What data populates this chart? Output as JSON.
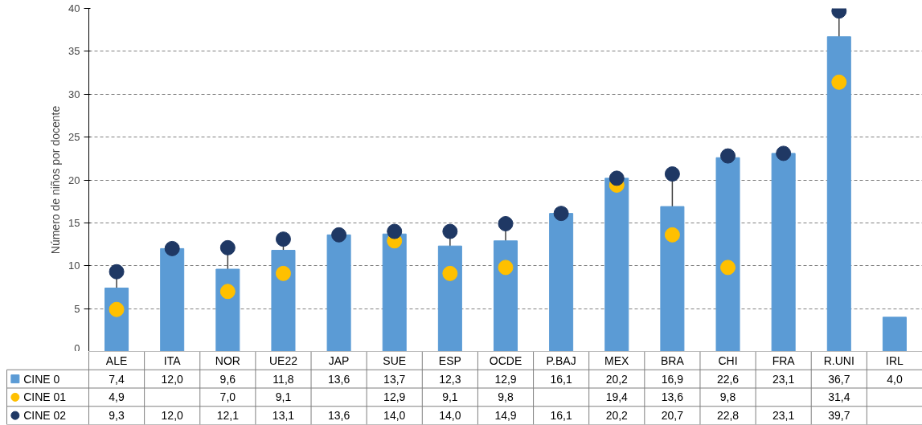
{
  "chart_data": {
    "type": "bar",
    "ylabel": "Número de niños por docente",
    "categories": [
      "ALE",
      "ITA",
      "NOR",
      "UE22",
      "JAP",
      "SUE",
      "ESP",
      "OCDE",
      "P.BAJ",
      "MEX",
      "BRA",
      "CHI",
      "FRA",
      "R.UNI",
      "IRL"
    ],
    "series": [
      {
        "name": "CINE 0",
        "color": "#5b9bd5",
        "values": [
          7.4,
          12.0,
          9.6,
          11.8,
          13.6,
          13.7,
          12.3,
          12.9,
          16.1,
          20.2,
          16.9,
          22.6,
          23.1,
          36.7,
          4.0
        ],
        "value_labels": [
          "7,4",
          "12,0",
          "9,6",
          "11,8",
          "13,6",
          "13,7",
          "12,3",
          "12,9",
          "16,1",
          "20,2",
          "16,9",
          "22,6",
          "23,1",
          "36,7",
          "4,0"
        ]
      },
      {
        "name": "CINE 01",
        "type": "scatter",
        "color": "#ffc000",
        "values": [
          4.9,
          null,
          7.0,
          9.1,
          null,
          12.9,
          9.1,
          9.8,
          null,
          19.4,
          13.6,
          9.8,
          null,
          31.4,
          null
        ],
        "value_labels": [
          "4,9",
          null,
          "7,0",
          "9,1",
          null,
          "12,9",
          "9,1",
          "9,8",
          null,
          "19,4",
          "13,6",
          "9,8",
          null,
          "31,4",
          null
        ]
      },
      {
        "name": "CINE 02",
        "type": "scatter",
        "color": "#1f3864",
        "values": [
          9.3,
          12.0,
          12.1,
          13.1,
          13.6,
          14.0,
          14.0,
          14.9,
          16.1,
          20.2,
          20.7,
          22.8,
          23.1,
          39.7,
          null
        ],
        "value_labels": [
          "9,3",
          "12,0",
          "12,1",
          "13,1",
          "13,6",
          "14,0",
          "14,0",
          "14,9",
          "16,1",
          "20,2",
          "20,7",
          "22,8",
          "23,1",
          "39,7",
          null
        ]
      }
    ],
    "ylim": [
      0,
      40
    ],
    "yticks": [
      0,
      5,
      10,
      15,
      20,
      25,
      30,
      35,
      40
    ],
    "grid": "y",
    "legend": "bottom",
    "marker": "circle"
  }
}
